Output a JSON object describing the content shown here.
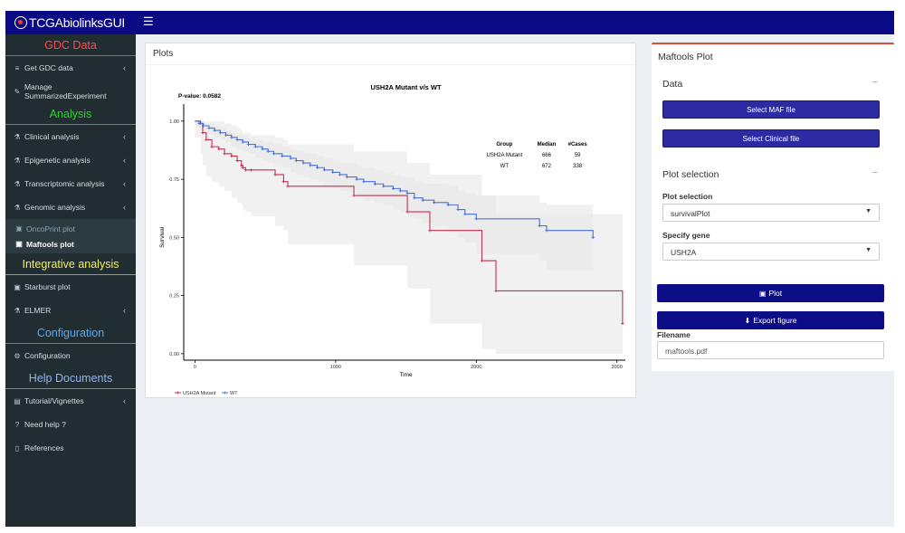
{
  "app": {
    "title": "TCGAbiolinksGUI"
  },
  "sidebar": {
    "sections": [
      {
        "header": "GDC Data",
        "color": "#ff4d4d",
        "border": "#dd4b39",
        "items": [
          {
            "label": "Get GDC data",
            "icon": "database-icon",
            "glyph": "≡",
            "chevron": true
          },
          {
            "label": "Manage SummarizedExperiment",
            "icon": "pencil-icon",
            "glyph": "✎",
            "chevron": false
          }
        ]
      },
      {
        "header": "Analysis",
        "color": "#27d827",
        "border": "#3c8dbc",
        "items": [
          {
            "label": "Clinical analysis",
            "icon": "flask-icon",
            "glyph": "⚗",
            "chevron": true
          },
          {
            "label": "Epigenetic analysis",
            "icon": "flask-icon",
            "glyph": "⚗",
            "chevron": true
          },
          {
            "label": "Transcriptomic analysis",
            "icon": "flask-icon",
            "glyph": "⚗",
            "chevron": true
          },
          {
            "label": "Genomic analysis",
            "icon": "flask-icon",
            "glyph": "⚗",
            "chevron": true
          }
        ],
        "subitems": [
          {
            "label": "OncoPrint plot",
            "icon": "image-icon",
            "active": false
          },
          {
            "label": "Maftools plot",
            "icon": "image-icon",
            "active": true
          }
        ]
      },
      {
        "header": "Integrative analysis",
        "color": "#f1f15a",
        "border": "#9ea537",
        "items": [
          {
            "label": "Starburst plot",
            "icon": "image-icon",
            "glyph": "▣",
            "chevron": false
          },
          {
            "label": "ELMER",
            "icon": "flask-icon",
            "glyph": "⚗",
            "chevron": true
          }
        ]
      },
      {
        "header": "Configuration",
        "color": "#58a9f7",
        "border": "#3c8dbc",
        "items": [
          {
            "label": "Configuration",
            "icon": "gears-icon",
            "glyph": "⚙",
            "chevron": false
          }
        ]
      },
      {
        "header": "Help Documents",
        "color": "#8fb6f5",
        "border": "#6a87c7",
        "items": [
          {
            "label": "Tutorial/Vignettes",
            "icon": "book-icon",
            "glyph": "▤",
            "chevron": true
          },
          {
            "label": "Need help ?",
            "icon": "question-icon",
            "glyph": "?",
            "chevron": false
          },
          {
            "label": "References",
            "icon": "file-icon",
            "glyph": "▯",
            "chevron": false
          }
        ]
      }
    ]
  },
  "plots_box": {
    "title": "Plots"
  },
  "chart_data": {
    "type": "line",
    "title": "USH2A Mutant v/s WT",
    "pvalue_text": "P-value: 0.0582",
    "xlabel": "Time",
    "ylabel": "Survival",
    "xlim": [
      -80,
      3060
    ],
    "ylim": [
      -0.02,
      1.05
    ],
    "xticks": [
      0,
      1000,
      2000,
      3000
    ],
    "yticks": [
      0.0,
      0.25,
      0.5,
      0.75,
      1.0
    ],
    "ytick_labels": [
      "0.00",
      "0.25",
      "0.50",
      "0.75",
      "1.00"
    ],
    "grid": false,
    "table": {
      "headers": [
        "Group",
        "Median",
        "#Cases"
      ],
      "rows": [
        [
          "USH2A Mutant",
          "666",
          "59"
        ],
        [
          "WT",
          "672",
          "338"
        ]
      ]
    },
    "series": [
      {
        "name": "USH2A Mutant",
        "color": "#c0324f",
        "band": "#e5e5e5",
        "x": [
          0,
          40,
          55,
          80,
          120,
          170,
          210,
          260,
          300,
          330,
          340,
          360,
          400,
          570,
          630,
          660,
          1130,
          1510,
          1670,
          2040,
          2140,
          3040
        ],
        "y": [
          1.0,
          0.99,
          0.95,
          0.92,
          0.89,
          0.88,
          0.86,
          0.85,
          0.83,
          0.81,
          0.8,
          0.79,
          0.79,
          0.77,
          0.74,
          0.72,
          0.68,
          0.61,
          0.53,
          0.4,
          0.27,
          0.13
        ],
        "lower": [
          1.0,
          0.93,
          0.86,
          0.81,
          0.76,
          0.74,
          0.72,
          0.7,
          0.67,
          0.65,
          0.64,
          0.62,
          0.61,
          0.59,
          0.55,
          0.53,
          0.47,
          0.38,
          0.28,
          0.13,
          0.02,
          0.0
        ],
        "upper": [
          1.0,
          1.0,
          1.0,
          1.0,
          1.0,
          1.0,
          0.99,
          0.98,
          0.97,
          0.96,
          0.95,
          0.95,
          0.94,
          0.93,
          0.92,
          0.9,
          0.87,
          0.82,
          0.77,
          0.68,
          0.6,
          0.42
        ]
      },
      {
        "name": "WT",
        "color": "#4a6fd8",
        "band": "#e5e5e5",
        "x": [
          0,
          30,
          60,
          100,
          140,
          180,
          220,
          260,
          300,
          340,
          380,
          430,
          480,
          520,
          560,
          620,
          680,
          720,
          770,
          820,
          870,
          920,
          980,
          1030,
          1080,
          1150,
          1200,
          1280,
          1340,
          1410,
          1460,
          1510,
          1560,
          1620,
          1700,
          1800,
          1870,
          1920,
          2000,
          2450,
          2500,
          2830
        ],
        "y": [
          1.0,
          0.99,
          0.98,
          0.97,
          0.96,
          0.95,
          0.94,
          0.93,
          0.92,
          0.91,
          0.9,
          0.89,
          0.88,
          0.87,
          0.86,
          0.85,
          0.84,
          0.83,
          0.82,
          0.81,
          0.8,
          0.79,
          0.78,
          0.77,
          0.76,
          0.75,
          0.74,
          0.73,
          0.72,
          0.71,
          0.7,
          0.69,
          0.67,
          0.66,
          0.65,
          0.64,
          0.62,
          0.6,
          0.58,
          0.55,
          0.53,
          0.5
        ],
        "lower": [
          1.0,
          0.98,
          0.97,
          0.95,
          0.94,
          0.93,
          0.92,
          0.91,
          0.89,
          0.88,
          0.87,
          0.86,
          0.84,
          0.83,
          0.82,
          0.81,
          0.8,
          0.78,
          0.77,
          0.76,
          0.75,
          0.74,
          0.72,
          0.71,
          0.7,
          0.69,
          0.68,
          0.66,
          0.65,
          0.64,
          0.62,
          0.61,
          0.59,
          0.58,
          0.56,
          0.55,
          0.52,
          0.5,
          0.48,
          0.43,
          0.4,
          0.36
        ],
        "upper": [
          1.0,
          1.0,
          0.99,
          0.99,
          0.98,
          0.97,
          0.96,
          0.95,
          0.94,
          0.94,
          0.93,
          0.92,
          0.91,
          0.91,
          0.9,
          0.89,
          0.88,
          0.87,
          0.86,
          0.86,
          0.85,
          0.84,
          0.83,
          0.82,
          0.82,
          0.81,
          0.8,
          0.79,
          0.78,
          0.77,
          0.76,
          0.76,
          0.74,
          0.73,
          0.73,
          0.72,
          0.7,
          0.69,
          0.68,
          0.65,
          0.64,
          0.61
        ]
      }
    ],
    "legend": [
      "USH2A Mutant",
      "WT"
    ],
    "legend_position": "bottom-left"
  },
  "maftools": {
    "title": "Maftools Plot",
    "data_section": "Data",
    "select_maf_label": "Select MAF file",
    "select_clinical_label": "Select Clinical file",
    "plot_section": "Plot selection",
    "plot_selection_label": "Plot selection",
    "plot_selection_value": "survivalPlot",
    "specify_gene_label": "Specify gene",
    "specify_gene_value": "USH2A",
    "plot_button": "Plot",
    "export_button": "Export figure",
    "filename_label": "Filename",
    "filename_value": "maftools.pdf",
    "minus_glyph": "−"
  }
}
